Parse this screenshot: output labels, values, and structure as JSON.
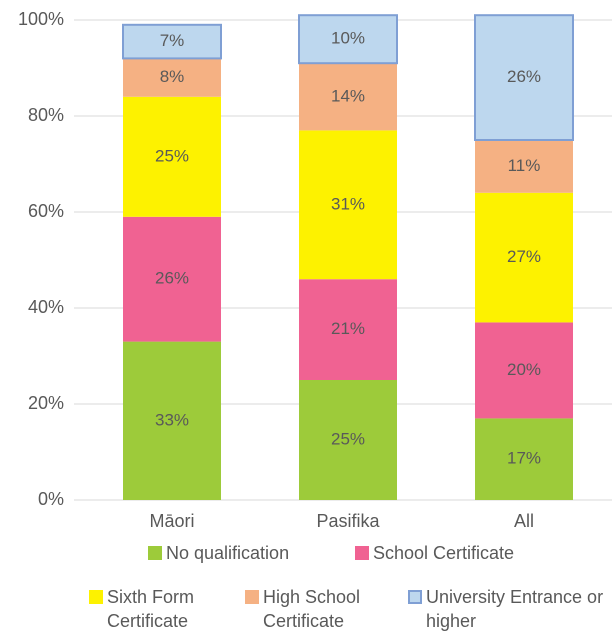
{
  "chart_data": {
    "type": "stacked_bar",
    "categories": [
      "Māori",
      "Pasifika",
      "All"
    ],
    "series": [
      {
        "name": "No qualification",
        "color": "#9dcb3a",
        "values": [
          33,
          25,
          17
        ],
        "value_labels": [
          "33%",
          "25%",
          "17%"
        ]
      },
      {
        "name": "School Certificate",
        "color": "#f06292",
        "values": [
          26,
          21,
          20
        ],
        "value_labels": [
          "26%",
          "21%",
          "20%"
        ]
      },
      {
        "name": "Sixth Form Certificate",
        "color": "#fdf200",
        "values": [
          25,
          31,
          27
        ],
        "value_labels": [
          "25%",
          "31%",
          "27%"
        ]
      },
      {
        "name": "High School Certificate",
        "color": "#f5b183",
        "values": [
          8,
          14,
          11
        ],
        "value_labels": [
          "8%",
          "14%",
          "11%"
        ]
      },
      {
        "name": "University Entrance or higher",
        "color": "#bdd7ee",
        "values": [
          7,
          10,
          26
        ],
        "value_labels": [
          "7%",
          "10%",
          "26%"
        ]
      }
    ],
    "ylim": [
      0,
      100
    ],
    "yticks": [
      {
        "value": 0,
        "label": "0%"
      },
      {
        "value": 20,
        "label": "20%"
      },
      {
        "value": 40,
        "label": "40%"
      },
      {
        "value": 60,
        "label": "60%"
      },
      {
        "value": 80,
        "label": "80%"
      },
      {
        "value": 100,
        "label": "100%"
      }
    ],
    "grid": true
  }
}
